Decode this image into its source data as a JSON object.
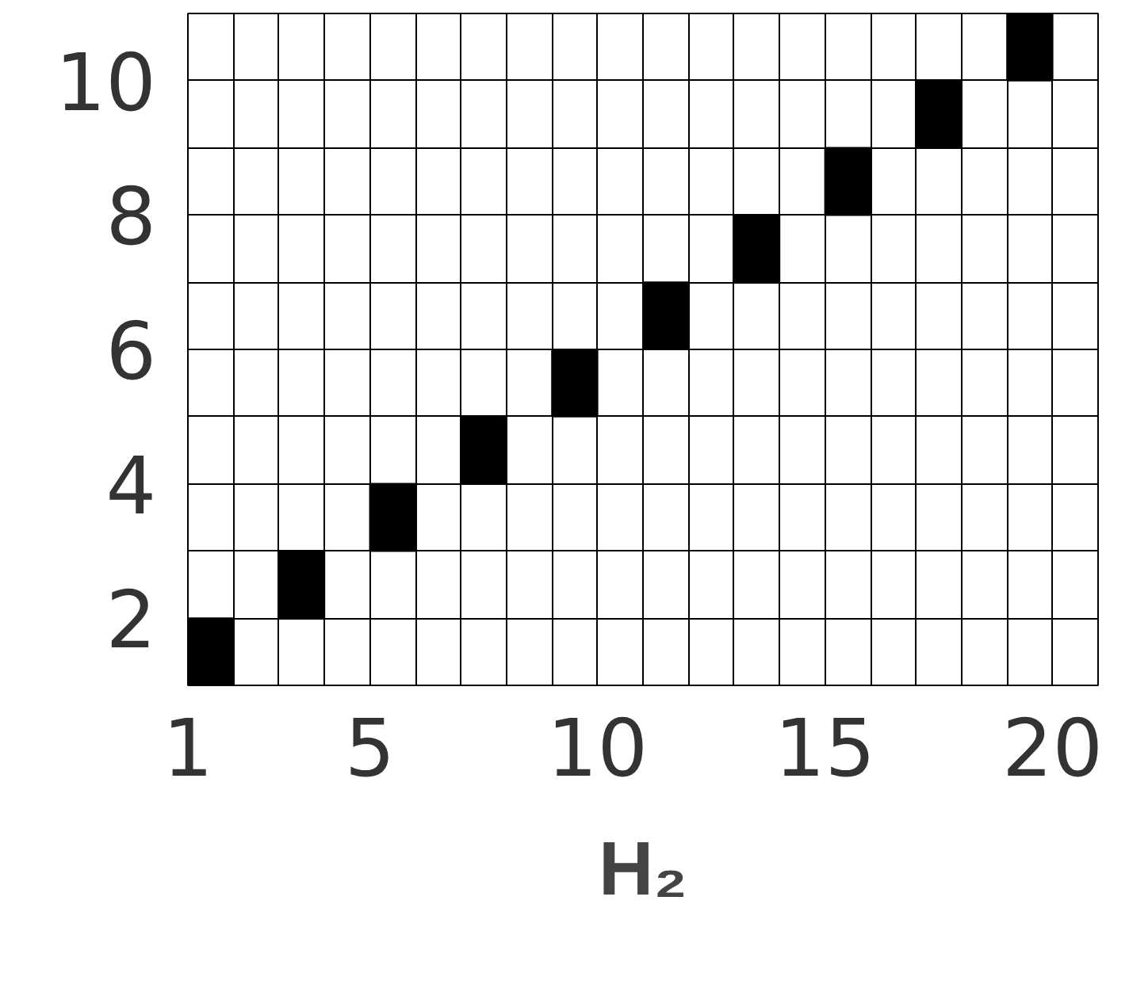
{
  "chart_data": {
    "type": "scatter",
    "xlabel": "H₂",
    "marker": "square",
    "grid": true,
    "x": [
      1.5,
      3.5,
      5.5,
      7.5,
      9.5,
      11.5,
      13.5,
      15.5,
      17.5,
      19.5
    ],
    "series": [
      {
        "color": "#000000",
        "values": [
          1.5,
          2.5,
          3.5,
          4.5,
          5.5,
          6.5,
          7.5,
          8.5,
          9.5,
          10.5
        ]
      }
    ],
    "xlim": [
      1,
      21
    ],
    "ylim": [
      1,
      11
    ],
    "xticks": [
      1,
      {
        "value": 2,
        "label": null
      },
      {
        "value": 3,
        "label": null
      },
      {
        "value": 4,
        "label": null
      },
      5,
      {
        "value": 6,
        "label": null
      },
      {
        "value": 7,
        "label": null
      },
      {
        "value": 8,
        "label": null
      },
      {
        "value": 9,
        "label": null
      },
      10,
      {
        "value": 11,
        "label": null
      },
      {
        "value": 12,
        "label": null
      },
      {
        "value": 13,
        "label": null
      },
      {
        "value": 14,
        "label": null
      },
      15,
      {
        "value": 16,
        "label": null
      },
      {
        "value": 17,
        "label": null
      },
      {
        "value": 18,
        "label": null
      },
      {
        "value": 19,
        "label": null
      },
      20,
      {
        "value": 21,
        "label": null
      }
    ],
    "yticks": [
      {
        "value": 1,
        "label": null
      },
      2,
      {
        "value": 3,
        "label": null
      },
      4,
      {
        "value": 5,
        "label": null
      },
      6,
      {
        "value": 7,
        "label": null
      },
      8,
      {
        "value": 9,
        "label": null
      },
      10,
      {
        "value": 11,
        "label": null
      }
    ]
  }
}
